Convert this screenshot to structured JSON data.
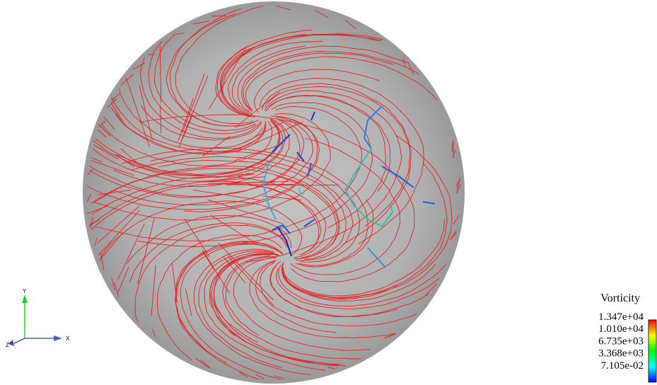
{
  "legend": {
    "title": "Vorticity",
    "labels": [
      "1.347e+04",
      "1.010e+04",
      "6.735e+03",
      "3.368e+03",
      "7.105e-02"
    ]
  },
  "axes": {
    "x": "X",
    "y": "Y",
    "z": "Z"
  }
}
